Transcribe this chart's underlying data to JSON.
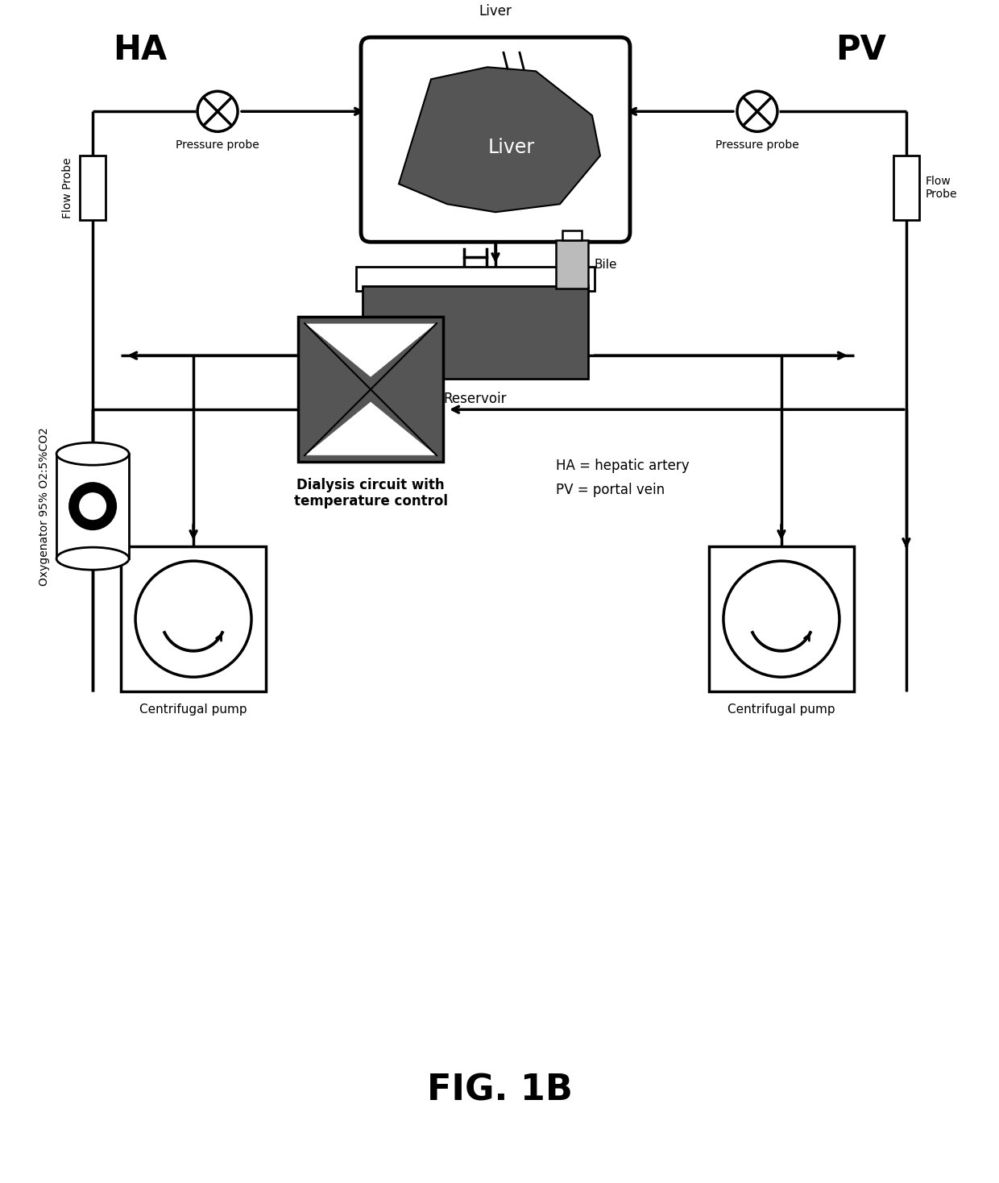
{
  "bg_color": "#ffffff",
  "line_color": "#000000",
  "dark_gray": "#555555",
  "light_gray": "#bbbbbb",
  "fig_title": "FIG. 1B",
  "liver_label": "Liver",
  "reservoir_label": "Reservoir",
  "pump_label": "Centrifugal pump",
  "dialysis_label1": "Dialysis circuit with",
  "dialysis_label2": "temperature control",
  "bile_label": "Bile",
  "ha_label": "HA",
  "pv_label": "PV",
  "fp_left_label": "Flow Probe",
  "fp_right_label": "Flow\nProbe",
  "pp_left_label": "Pressure probe",
  "pp_right_label": "Pressure probe",
  "oxy_label": "Oxygenator 95% O2:5%CO2",
  "legend1": "HA = hepatic artery",
  "legend2": "PV = portal vein"
}
